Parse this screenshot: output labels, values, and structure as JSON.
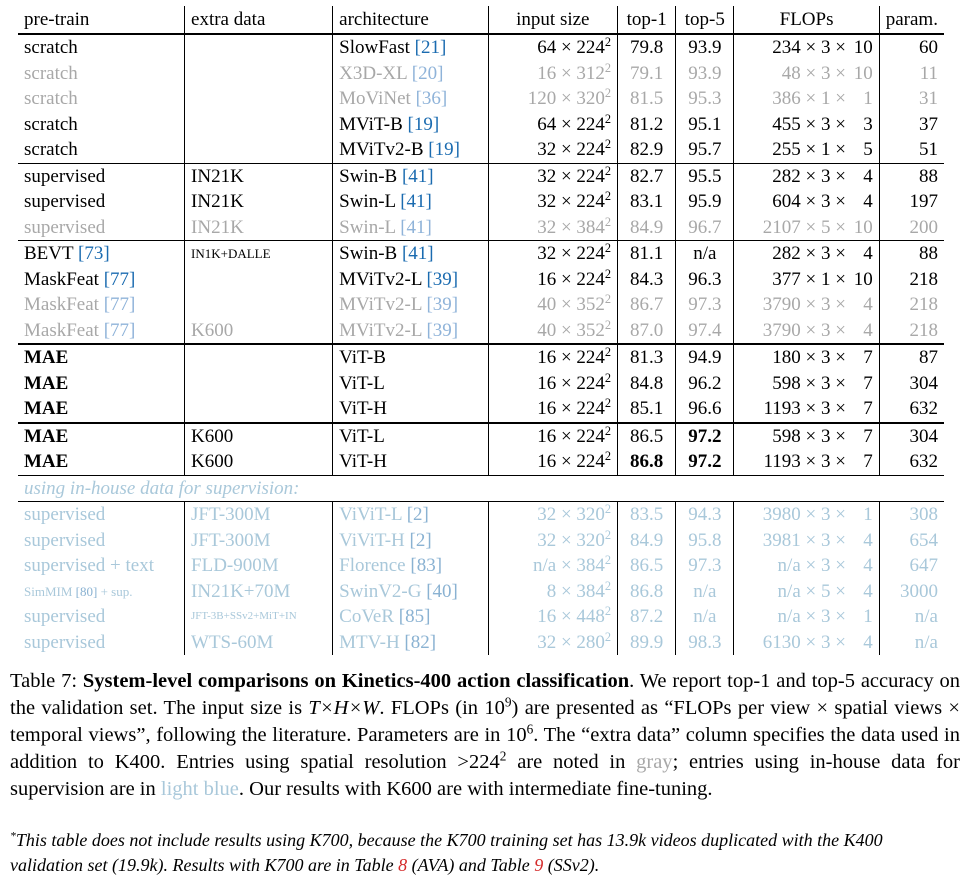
{
  "table": {
    "headers": [
      "pre-train",
      "extra data",
      "architecture",
      "input size",
      "top-1",
      "top-5",
      "FLOPs",
      "param."
    ],
    "groups": [
      [
        {
          "pretrain": "scratch",
          "extra": "",
          "arch": "SlowFast",
          "ref": "[21]",
          "in_a": "64",
          "in_b": "224",
          "top1": "79.8",
          "top5": "93.9",
          "fl_a": "234",
          "fl_b": "3",
          "fl_c": "10",
          "param": "60",
          "style": "normal"
        },
        {
          "pretrain": "scratch",
          "extra": "",
          "arch": "X3D-XL",
          "ref": "[20]",
          "in_a": "16",
          "in_b": "312",
          "top1": "79.1",
          "top5": "93.9",
          "fl_a": "48",
          "fl_b": "3",
          "fl_c": "10",
          "param": "11",
          "style": "gray"
        },
        {
          "pretrain": "scratch",
          "extra": "",
          "arch": "MoViNet",
          "ref": "[36]",
          "in_a": "120",
          "in_b": "320",
          "top1": "81.5",
          "top5": "95.3",
          "fl_a": "386",
          "fl_b": "1",
          "fl_c": "1",
          "param": "31",
          "style": "gray"
        },
        {
          "pretrain": "scratch",
          "extra": "",
          "arch": "MViT-B",
          "ref": "[19]",
          "in_a": "64",
          "in_b": "224",
          "top1": "81.2",
          "top5": "95.1",
          "fl_a": "455",
          "fl_b": "3",
          "fl_c": "3",
          "param": "37",
          "style": "normal"
        },
        {
          "pretrain": "scratch",
          "extra": "",
          "arch": "MViTv2-B",
          "ref": "[19]",
          "in_a": "32",
          "in_b": "224",
          "top1": "82.9",
          "top5": "95.7",
          "fl_a": "255",
          "fl_b": "1",
          "fl_c": "5",
          "param": "51",
          "style": "normal"
        }
      ],
      [
        {
          "pretrain": "supervised",
          "extra": "IN21K",
          "arch": "Swin-B",
          "ref": "[41]",
          "in_a": "32",
          "in_b": "224",
          "top1": "82.7",
          "top5": "95.5",
          "fl_a": "282",
          "fl_b": "3",
          "fl_c": "4",
          "param": "88",
          "style": "normal"
        },
        {
          "pretrain": "supervised",
          "extra": "IN21K",
          "arch": "Swin-L",
          "ref": "[41]",
          "in_a": "32",
          "in_b": "224",
          "top1": "83.1",
          "top5": "95.9",
          "fl_a": "604",
          "fl_b": "3",
          "fl_c": "4",
          "param": "197",
          "style": "normal"
        },
        {
          "pretrain": "supervised",
          "extra": "IN21K",
          "arch": "Swin-L",
          "ref": "[41]",
          "in_a": "32",
          "in_b": "384",
          "top1": "84.9",
          "top5": "96.7",
          "fl_a": "2107",
          "fl_b": "5",
          "fl_c": "10",
          "param": "200",
          "style": "gray"
        }
      ],
      [
        {
          "pretrain": "BEVT",
          "pref": "[73]",
          "extra": "IN1K+DALLE",
          "extra_size": "small",
          "arch": "Swin-B",
          "ref": "[41]",
          "in_a": "32",
          "in_b": "224",
          "top1": "81.1",
          "top5": "n/a",
          "fl_a": "282",
          "fl_b": "3",
          "fl_c": "4",
          "param": "88",
          "style": "normal"
        },
        {
          "pretrain": "MaskFeat",
          "pref": "[77]",
          "extra": "",
          "arch": "MViTv2-L",
          "ref": "[39]",
          "in_a": "16",
          "in_b": "224",
          "top1": "84.3",
          "top5": "96.3",
          "fl_a": "377",
          "fl_b": "1",
          "fl_c": "10",
          "param": "218",
          "style": "normal"
        },
        {
          "pretrain": "MaskFeat",
          "pref": "[77]",
          "extra": "",
          "arch": "MViTv2-L",
          "ref": "[39]",
          "in_a": "40",
          "in_b": "352",
          "top1": "86.7",
          "top5": "97.3",
          "fl_a": "3790",
          "fl_b": "3",
          "fl_c": "4",
          "param": "218",
          "style": "gray"
        },
        {
          "pretrain": "MaskFeat",
          "pref": "[77]",
          "extra": "K600",
          "arch": "MViTv2-L",
          "ref": "[39]",
          "in_a": "40",
          "in_b": "352",
          "top1": "87.0",
          "top5": "97.4",
          "fl_a": "3790",
          "fl_b": "3",
          "fl_c": "4",
          "param": "218",
          "style": "gray"
        }
      ],
      [
        {
          "pretrain": "MAE",
          "bold_pre": true,
          "extra": "",
          "arch": "ViT-B",
          "ref": "",
          "in_a": "16",
          "in_b": "224",
          "top1": "81.3",
          "top5": "94.9",
          "fl_a": "180",
          "fl_b": "3",
          "fl_c": "7",
          "param": "87",
          "style": "normal"
        },
        {
          "pretrain": "MAE",
          "bold_pre": true,
          "extra": "",
          "arch": "ViT-L",
          "ref": "",
          "in_a": "16",
          "in_b": "224",
          "top1": "84.8",
          "top5": "96.2",
          "fl_a": "598",
          "fl_b": "3",
          "fl_c": "7",
          "param": "304",
          "style": "normal"
        },
        {
          "pretrain": "MAE",
          "bold_pre": true,
          "extra": "",
          "arch": "ViT-H",
          "ref": "",
          "in_a": "16",
          "in_b": "224",
          "top1": "85.1",
          "top5": "96.6",
          "fl_a": "1193",
          "fl_b": "3",
          "fl_c": "7",
          "param": "632",
          "style": "normal"
        }
      ],
      [
        {
          "pretrain": "MAE",
          "bold_pre": true,
          "extra": "K600",
          "arch": "ViT-L",
          "ref": "",
          "in_a": "16",
          "in_b": "224",
          "top1": "86.5",
          "top5": "97.2",
          "bold_top5": true,
          "fl_a": "598",
          "fl_b": "3",
          "fl_c": "7",
          "param": "304",
          "style": "normal"
        },
        {
          "pretrain": "MAE",
          "bold_pre": true,
          "extra": "K600",
          "arch": "ViT-H",
          "ref": "",
          "in_a": "16",
          "in_b": "224",
          "top1": "86.8",
          "bold_top1": true,
          "top5": "97.2",
          "bold_top5": true,
          "fl_a": "1193",
          "fl_b": "3",
          "fl_c": "7",
          "param": "632",
          "style": "normal"
        }
      ]
    ],
    "inhouse_label": "using in-house data for supervision:",
    "inhouse": [
      {
        "pretrain": "supervised",
        "extra": "JFT-300M",
        "arch": "ViViT-L",
        "ref": "[2]",
        "in_a": "32",
        "in_b": "320",
        "top1": "83.5",
        "top5": "94.3",
        "fl_a": "3980",
        "fl_b": "3",
        "fl_c": "1",
        "param": "308",
        "style": "blue"
      },
      {
        "pretrain": "supervised",
        "extra": "JFT-300M",
        "arch": "ViViT-H",
        "ref": "[2]",
        "in_a": "32",
        "in_b": "320",
        "top1": "84.9",
        "top5": "95.8",
        "fl_a": "3981",
        "fl_b": "3",
        "fl_c": "4",
        "param": "654",
        "style": "blue"
      },
      {
        "pretrain": "supervised + text",
        "extra": "FLD-900M",
        "arch": "Florence",
        "ref": "[83]",
        "in_a": "n/a",
        "in_b": "384",
        "top1": "86.5",
        "top5": "97.3",
        "fl_a": "n/a",
        "fl_b": "3",
        "fl_c": "4",
        "param": "647",
        "style": "blue"
      },
      {
        "pretrain": "SimMIM",
        "pref": "[80]",
        "pre_suffix": " + sup.",
        "pre_size": "small",
        "extra": "IN21K+70M",
        "arch": "SwinV2-G",
        "ref": "[40]",
        "in_a": "8",
        "in_b": "384",
        "top1": "86.8",
        "top5": "n/a",
        "fl_a": "n/a",
        "fl_b": "5",
        "fl_c": "4",
        "param": "3000",
        "style": "blue"
      },
      {
        "pretrain": "supervised",
        "extra": "JFT-3B+SSv2+MiT+IN",
        "extra_size": "tiny",
        "arch": "CoVeR",
        "ref": "[85]",
        "in_a": "16",
        "in_b": "448",
        "top1": "87.2",
        "top5": "n/a",
        "fl_a": "n/a",
        "fl_b": "3",
        "fl_c": "1",
        "param": "n/a",
        "style": "blue"
      },
      {
        "pretrain": "supervised",
        "extra": "WTS-60M",
        "arch": "MTV-H",
        "ref": "[82]",
        "in_a": "32",
        "in_b": "280",
        "top1": "89.9",
        "top5": "98.3",
        "fl_a": "6130",
        "fl_b": "3",
        "fl_c": "4",
        "param": "n/a",
        "style": "blue"
      }
    ]
  },
  "caption": {
    "label": "Table 7:",
    "title": "System-level comparisons on Kinetics-400 action classification",
    "s1": ". We report top-1 and top-5 accuracy on the validation set. The input size is ",
    "s1_math": "T×H×W",
    "s2": ". FLOPs (in 10",
    "s2_exp": "9",
    "s3": ") are presented as “FLOPs per view × spatial views × temporal views”, following the literature. Parameters are in 10",
    "s3_exp": "6",
    "s4": ". The “extra data” column specifies the data used in addition to K400. Entries using spatial resolution >224",
    "s4_exp": "2",
    "s5": " are noted in ",
    "gray_word": "gray",
    "s6": "; entries using in-house data for supervision are in ",
    "blue_word": "light blue",
    "s7": ". Our results with K600 are with intermediate fine-tuning."
  },
  "footnote": {
    "marker": "*",
    "t1": "This table does not include results using K700, because the K700 training set has 13.9k videos duplicated with the K400 validation set (19.9k). Results with K700 are in Table ",
    "ref1": "8",
    "t2": " (AVA) and Table ",
    "ref2": "9",
    "t3": " (SSv2)."
  }
}
